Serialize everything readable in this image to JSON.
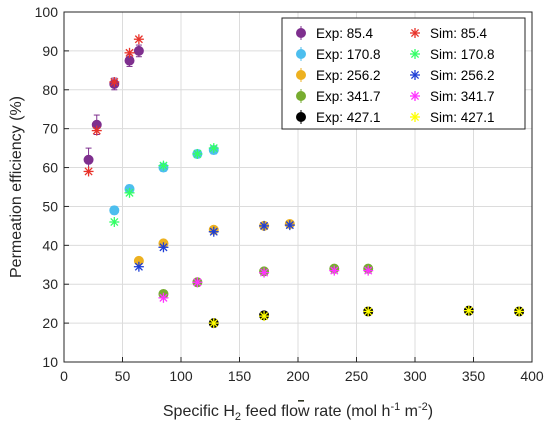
{
  "chart_data": {
    "type": "scatter",
    "title": "",
    "xlabel": {
      "pre": "Specific H",
      "sub": "2",
      "mid": " feed flow rate (mol h",
      "sup1": "-1",
      "gap": " m",
      "sup2": "-2",
      "post": ")"
    },
    "ylabel": "Permeation efficiency (%)",
    "xlim": [
      0,
      400
    ],
    "ylim": [
      10,
      100
    ],
    "xticks": [
      0,
      50,
      100,
      150,
      200,
      250,
      300,
      350,
      400
    ],
    "yticks": [
      10,
      20,
      30,
      40,
      50,
      60,
      70,
      80,
      90,
      100
    ],
    "grid": true,
    "legend_position": "top-right",
    "series": [
      {
        "name": "Exp: 85.4",
        "kind": "exp",
        "color": "#7e2f8e",
        "x": [
          21,
          28,
          43,
          56,
          64
        ],
        "y": [
          62,
          71,
          81.5,
          87.5,
          90
        ],
        "err": [
          3,
          2.5,
          1.5,
          1.5,
          1.5
        ]
      },
      {
        "name": "Sim: 85.4",
        "kind": "sim",
        "color": "#e8332a",
        "x": [
          21,
          28,
          43,
          56,
          64
        ],
        "y": [
          59,
          69.5,
          82,
          89.5,
          93
        ]
      },
      {
        "name": "Exp: 170.8",
        "kind": "exp",
        "color": "#4dbeee",
        "x": [
          43,
          56,
          85,
          114,
          128
        ],
        "y": [
          49,
          54.5,
          60,
          63.5,
          64.5
        ],
        "err": [
          1,
          1,
          1,
          1,
          1
        ]
      },
      {
        "name": "Sim: 170.8",
        "kind": "sim",
        "color": "#33ff66",
        "x": [
          43,
          56,
          85,
          114,
          128
        ],
        "y": [
          46,
          53.5,
          60.5,
          63.5,
          65
        ]
      },
      {
        "name": "Exp: 256.2",
        "kind": "exp",
        "color": "#edb120",
        "x": [
          64,
          85,
          128,
          171,
          193
        ],
        "y": [
          36,
          40.5,
          44,
          45,
          45.5
        ],
        "err": [
          0.8,
          0.8,
          0.8,
          0.8,
          0.8
        ]
      },
      {
        "name": "Sim: 256.2",
        "kind": "sim",
        "color": "#1f3fd6",
        "x": [
          64,
          85,
          128,
          171,
          193
        ],
        "y": [
          34.5,
          39.5,
          43.5,
          45,
          45.2
        ]
      },
      {
        "name": "Exp: 341.7",
        "kind": "exp",
        "color": "#77ac30",
        "x": [
          85,
          114,
          171,
          231,
          260
        ],
        "y": [
          27.5,
          30.5,
          33.3,
          34,
          34
        ],
        "err": [
          0.7,
          0.7,
          0.7,
          0.7,
          0.7
        ]
      },
      {
        "name": "Sim: 341.7",
        "kind": "sim",
        "color": "#ff33ff",
        "x": [
          85,
          114,
          171,
          231,
          260
        ],
        "y": [
          26.5,
          30.5,
          33,
          33.5,
          33.5
        ]
      },
      {
        "name": "Exp: 427.1",
        "kind": "exp",
        "color": "#000000",
        "x": [
          128,
          171,
          260,
          346,
          389
        ],
        "y": [
          20,
          22,
          23,
          23.2,
          23
        ],
        "err": [
          0.5,
          0.5,
          0.5,
          0.5,
          0.5
        ]
      },
      {
        "name": "Sim: 427.1",
        "kind": "sim",
        "color": "#ffff00",
        "x": [
          128,
          171,
          260,
          346,
          389
        ],
        "y": [
          20,
          21.8,
          23,
          23.2,
          23
        ]
      }
    ]
  }
}
